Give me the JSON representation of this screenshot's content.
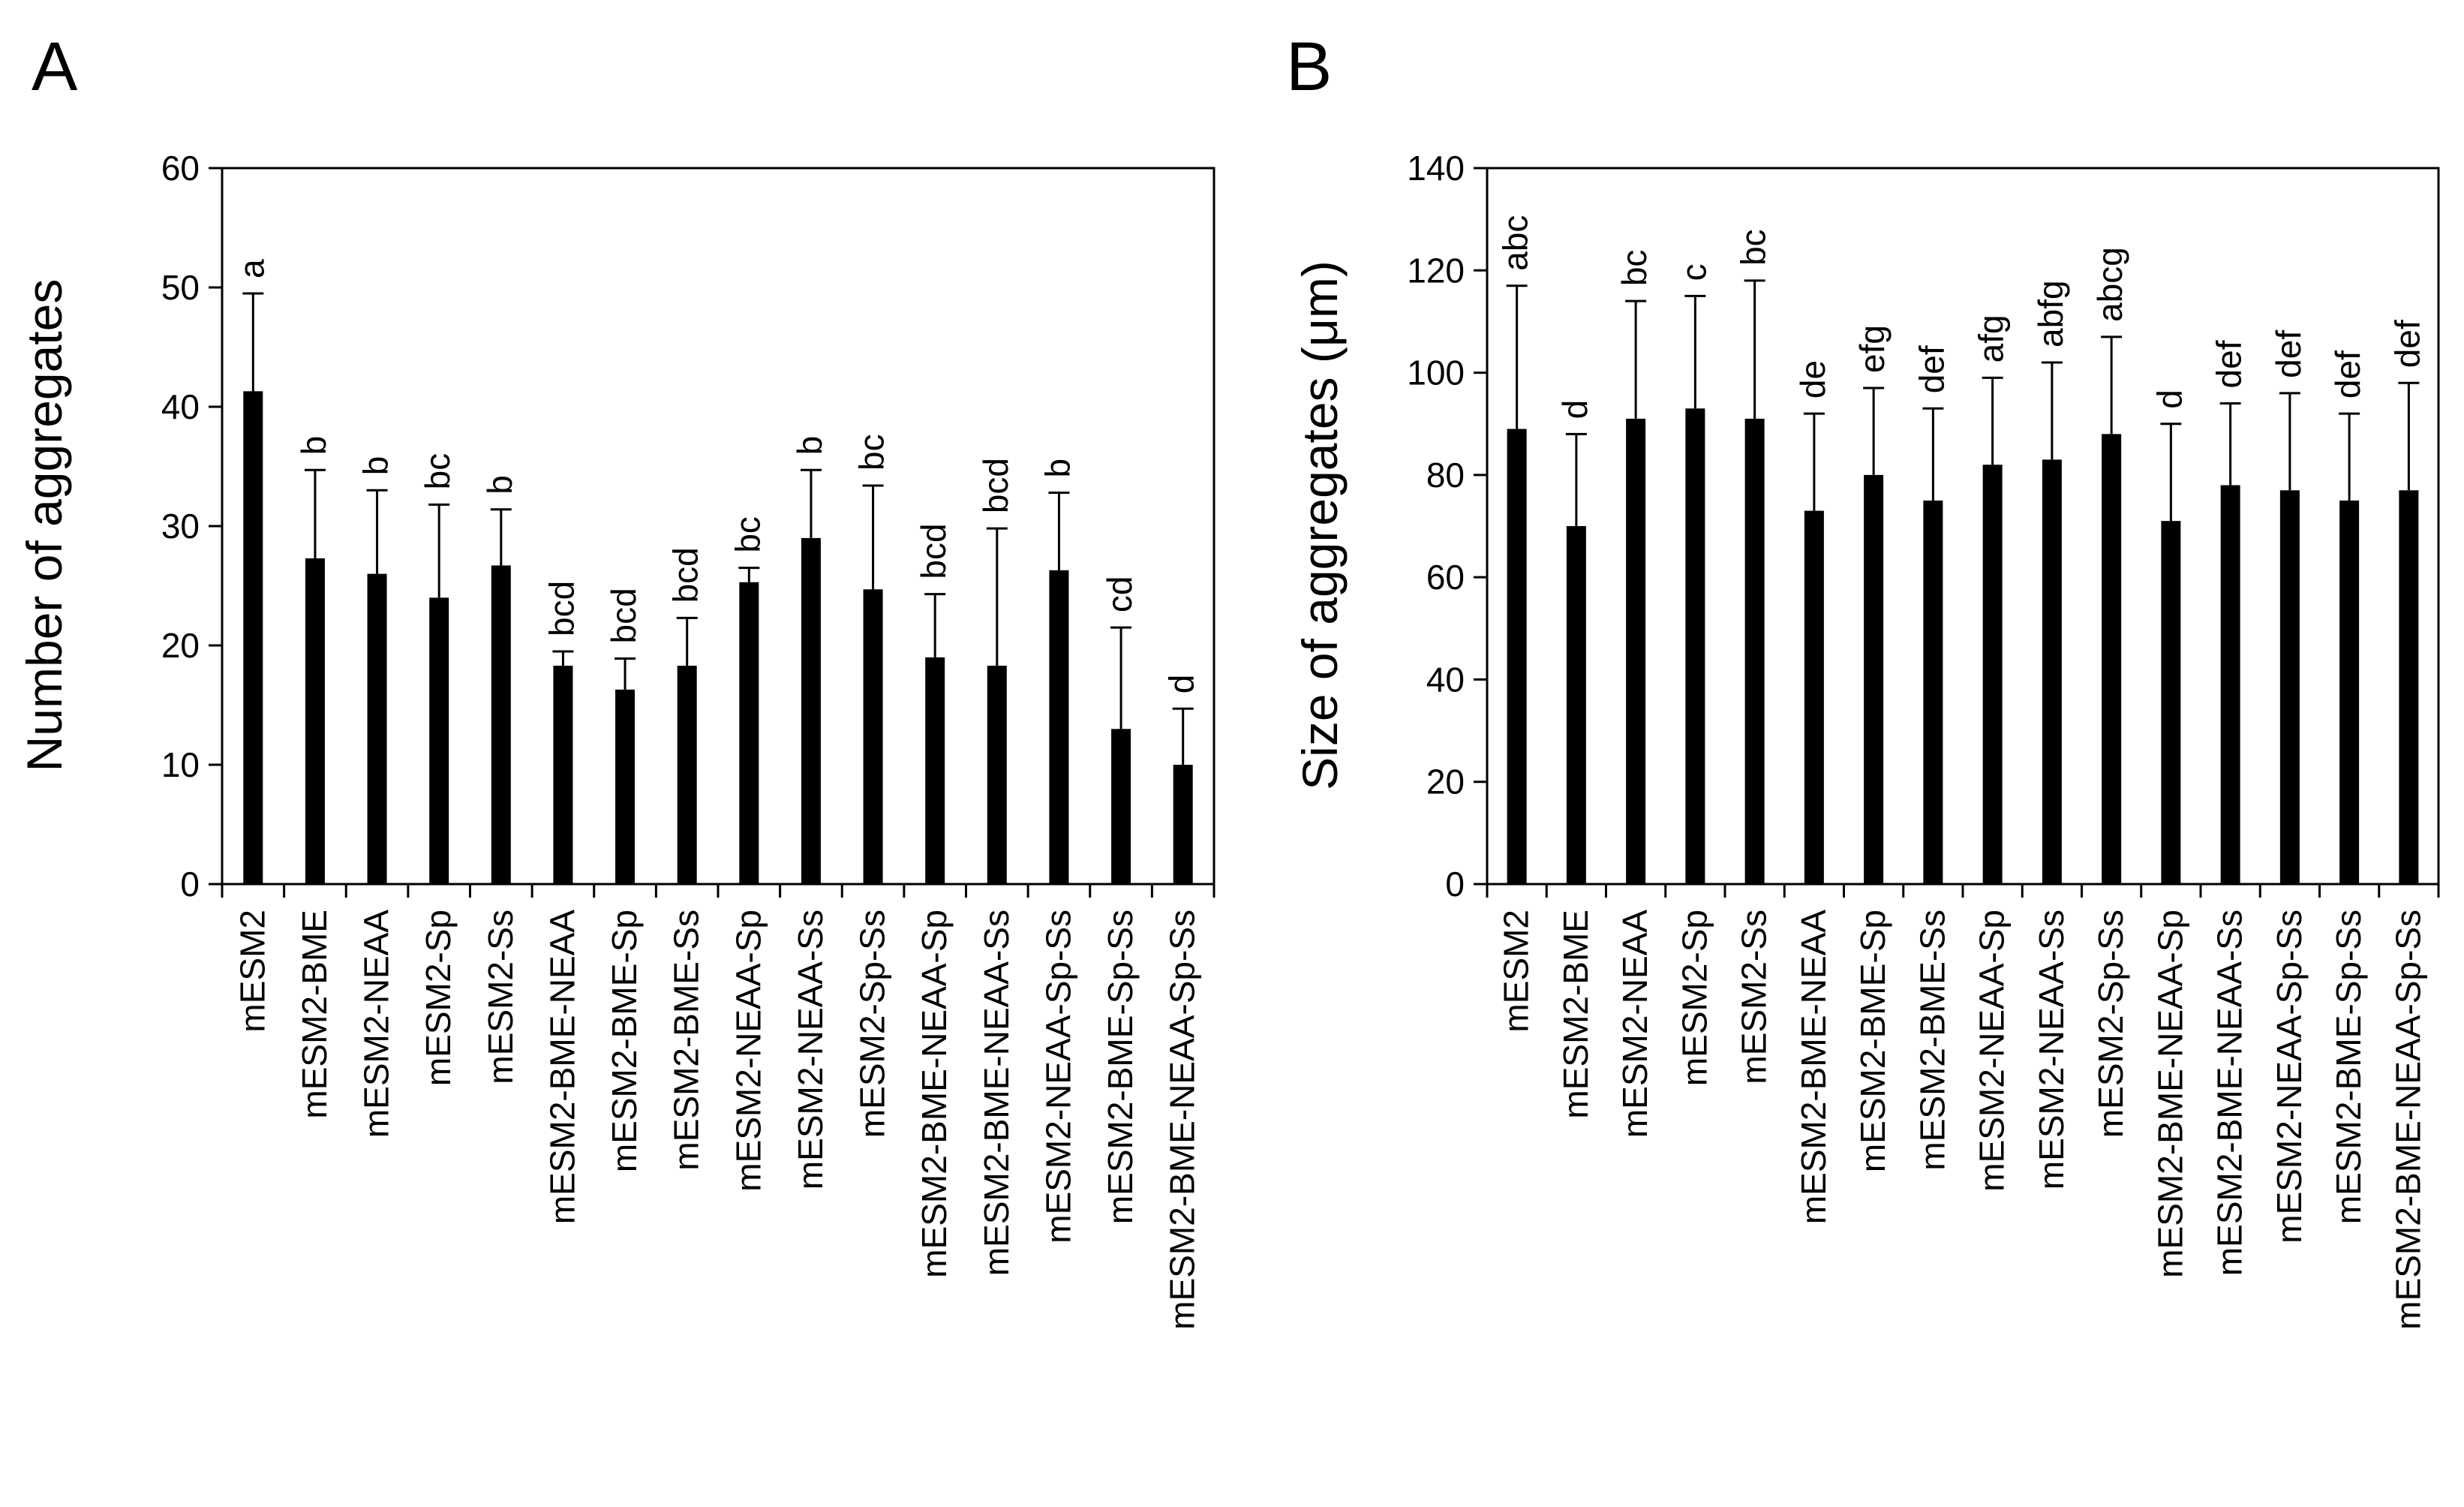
{
  "chart_data": [
    {
      "panel_label": "A",
      "type": "bar",
      "title": "",
      "xlabel": "",
      "ylabel": "Number of aggregates",
      "ylim": [
        0,
        60
      ],
      "yticks": [
        0,
        10,
        20,
        30,
        40,
        50,
        60
      ],
      "grid": false,
      "categories": [
        "mESM2",
        "mESM2-BME",
        "mESM2-NEAA",
        "mESM2-Sp",
        "mESM2-Ss",
        "mESM2-BME-NEAA",
        "mESM2-BME-Sp",
        "mESM2-BME-Ss",
        "mESM2-NEAA-Sp",
        "mESM2-NEAA-Ss",
        "mESM2-Sp-Ss",
        "mESM2-BME-NEAA-Sp",
        "mESM2-BME-NEAA-Ss",
        "mESM2-NEAA-Sp-Ss",
        "mESM2-BME-Sp-Ss",
        "mESM2-BME-NEAA-Sp-Ss"
      ],
      "values": [
        41.3,
        27.3,
        26.0,
        24.0,
        26.7,
        18.3,
        16.3,
        18.3,
        25.3,
        29.0,
        24.7,
        19.0,
        18.3,
        26.3,
        13.0,
        10.0
      ],
      "error_upper": [
        49.5,
        34.7,
        33.0,
        31.8,
        31.4,
        19.5,
        18.9,
        22.3,
        26.5,
        34.7,
        33.4,
        24.3,
        29.8,
        32.8,
        21.5,
        14.7
      ],
      "significance_labels": [
        "a",
        "b",
        "b",
        "bc",
        "b",
        "bcd",
        "bcd",
        "bcd",
        "bc",
        "b",
        "bc",
        "bcd",
        "bcd",
        "b",
        "cd",
        "d"
      ]
    },
    {
      "panel_label": "B",
      "type": "bar",
      "title": "",
      "xlabel": "",
      "ylabel": "Size of aggregates (μm)",
      "ylim": [
        0,
        140
      ],
      "yticks": [
        0,
        20,
        40,
        60,
        80,
        100,
        120,
        140
      ],
      "grid": false,
      "categories": [
        "mESM2",
        "mESM2-BME",
        "mESM2-NEAA",
        "mESM2-Sp",
        "mESM2-Ss",
        "mESM2-BME-NEAA",
        "mESM2-BME-Sp",
        "mESM2-BME-Ss",
        "mESM2-NEAA-Sp",
        "mESM2-NEAA-Ss",
        "mESM2-Sp-Ss",
        "mESM2-BME-NEAA-Sp",
        "mESM2-BME-NEAA-Ss",
        "mESM2-NEAA-Sp-Ss",
        "mESM2-BME-Sp-Ss",
        "mESM2-BME-NEAA-Sp-Ss"
      ],
      "values": [
        89,
        70,
        91,
        93,
        91,
        73,
        80,
        75,
        82,
        83,
        88,
        71,
        78,
        77,
        75,
        77
      ],
      "error_upper": [
        117,
        88,
        114,
        115,
        118,
        92,
        97,
        93,
        99,
        102,
        107,
        90,
        94,
        96,
        92,
        98
      ],
      "significance_labels": [
        "abc",
        "d",
        "bc",
        "c",
        "bc",
        "de",
        "efg",
        "def",
        "afg",
        "abfg",
        "abcg",
        "d",
        "def",
        "def",
        "def",
        "def"
      ]
    }
  ]
}
